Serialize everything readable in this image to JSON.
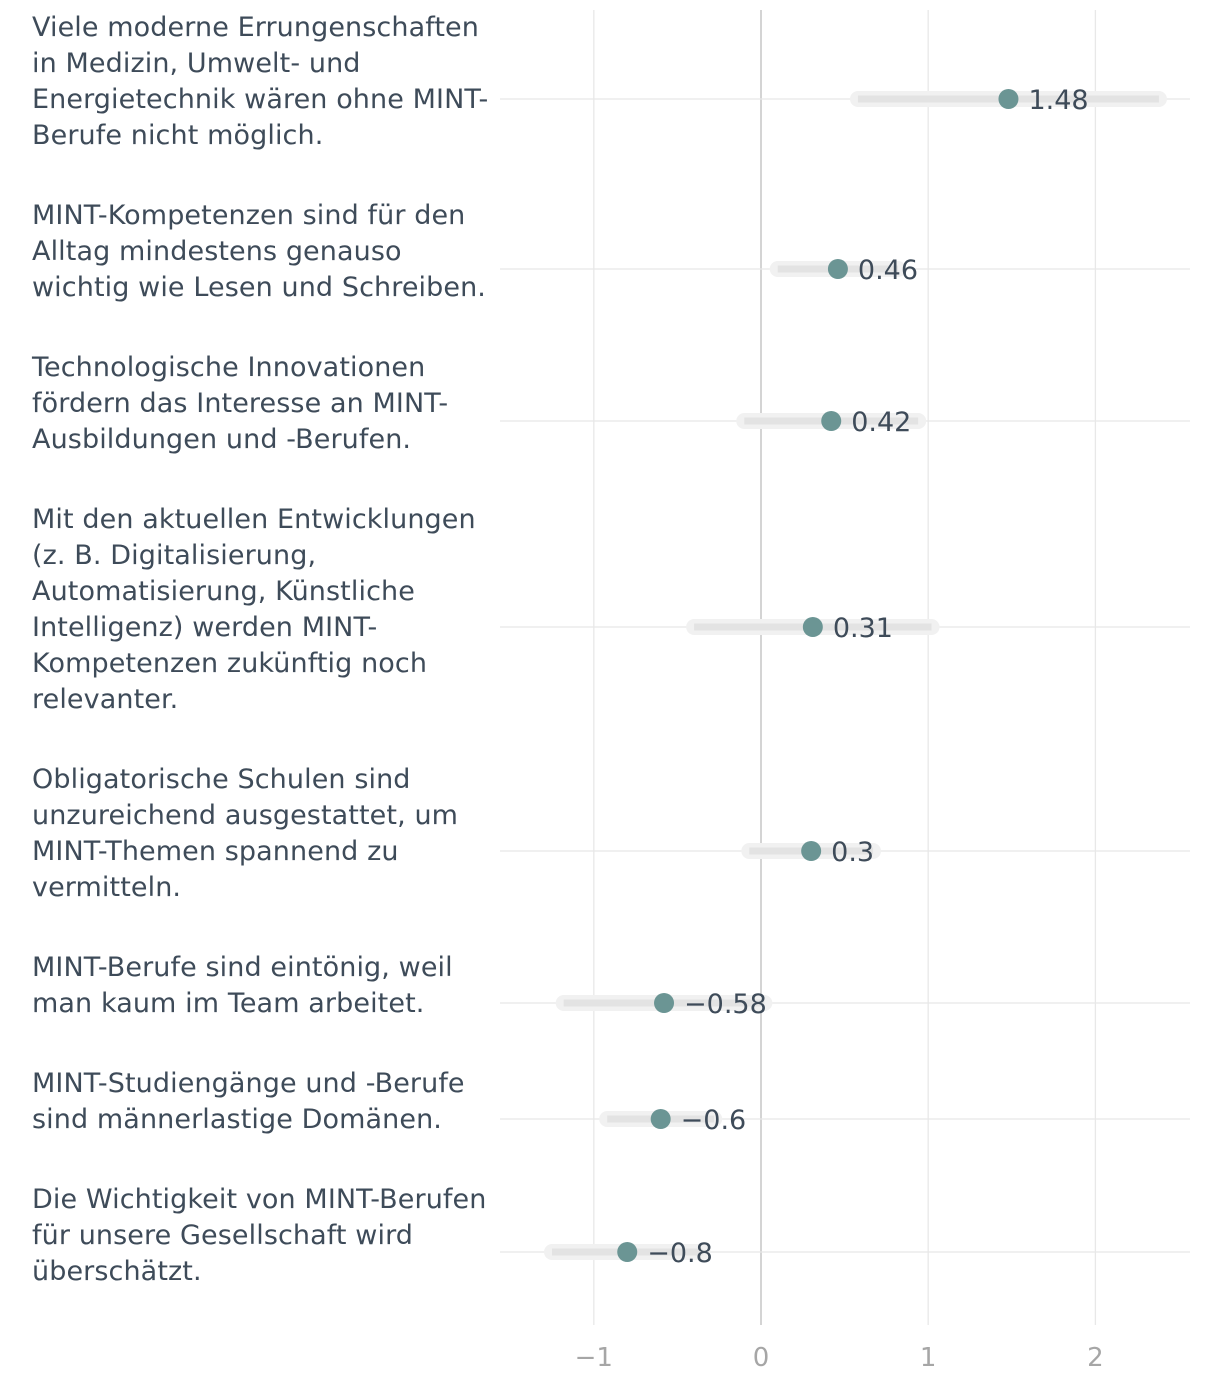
{
  "chart_data": {
    "type": "dot-interval",
    "title": "",
    "xlabel": "",
    "ylabel": "",
    "xlim": [
      -1.6,
      2.55
    ],
    "xticks": [
      -1,
      0,
      1,
      2
    ],
    "xtick_labels": [
      "−1",
      "0",
      "1",
      "2"
    ],
    "grid": true,
    "colors": {
      "point": "#6b9594",
      "interval": "#e3e3e3",
      "grid": "#e8e8e8",
      "zero_line": "#c9c9c9",
      "tick_label": "#a6a6a6",
      "value_label": "#3e4b59"
    },
    "items": [
      {
        "label": "Viele moderne Errungenschaften in Medizin, Umwelt- und Energietechnik wären ohne MINT-Berufe nicht möglich.",
        "value": 1.48,
        "value_label": "1.48",
        "low": 0.58,
        "high": 2.38
      },
      {
        "label": "MINT-Kompetenzen sind für den Alltag mindestens genauso wichtig wie Lesen und Schreiben.",
        "value": 0.46,
        "value_label": "0.46",
        "low": 0.1,
        "high": 0.82
      },
      {
        "label": "Technologische Innovationen fördern das Interesse an MINT-Ausbildungen und -Berufen.",
        "value": 0.42,
        "value_label": "0.42",
        "low": -0.1,
        "high": 0.94
      },
      {
        "label": "Mit den aktuellen Entwicklungen (z. B. Digitalisierung, Automatisierung, Künstliche Intelligenz) werden MINT-Kompetenzen zukünftig noch relevanter.",
        "value": 0.31,
        "value_label": "0.31",
        "low": -0.4,
        "high": 1.02
      },
      {
        "label": "Obligatorische Schulen sind unzureichend ausgestattet, um MINT-Themen spannend zu vermitteln.",
        "value": 0.3,
        "value_label": "0.3",
        "low": -0.07,
        "high": 0.67
      },
      {
        "label": "MINT-Berufe sind eintönig, weil man kaum im Team arbeitet.",
        "value": -0.58,
        "value_label": "−0.58",
        "low": -1.18,
        "high": 0.02
      },
      {
        "label": "MINT-Studiengänge und -Berufe sind männerlastige Domänen.",
        "value": -0.6,
        "value_label": "−0.6",
        "low": -0.92,
        "high": -0.28
      },
      {
        "label": "Die Wichtigkeit von MINT-Berufen für unsere Gesellschaft wird überschätzt.",
        "value": -0.8,
        "value_label": "−0.8",
        "low": -1.25,
        "high": -0.35
      }
    ]
  }
}
